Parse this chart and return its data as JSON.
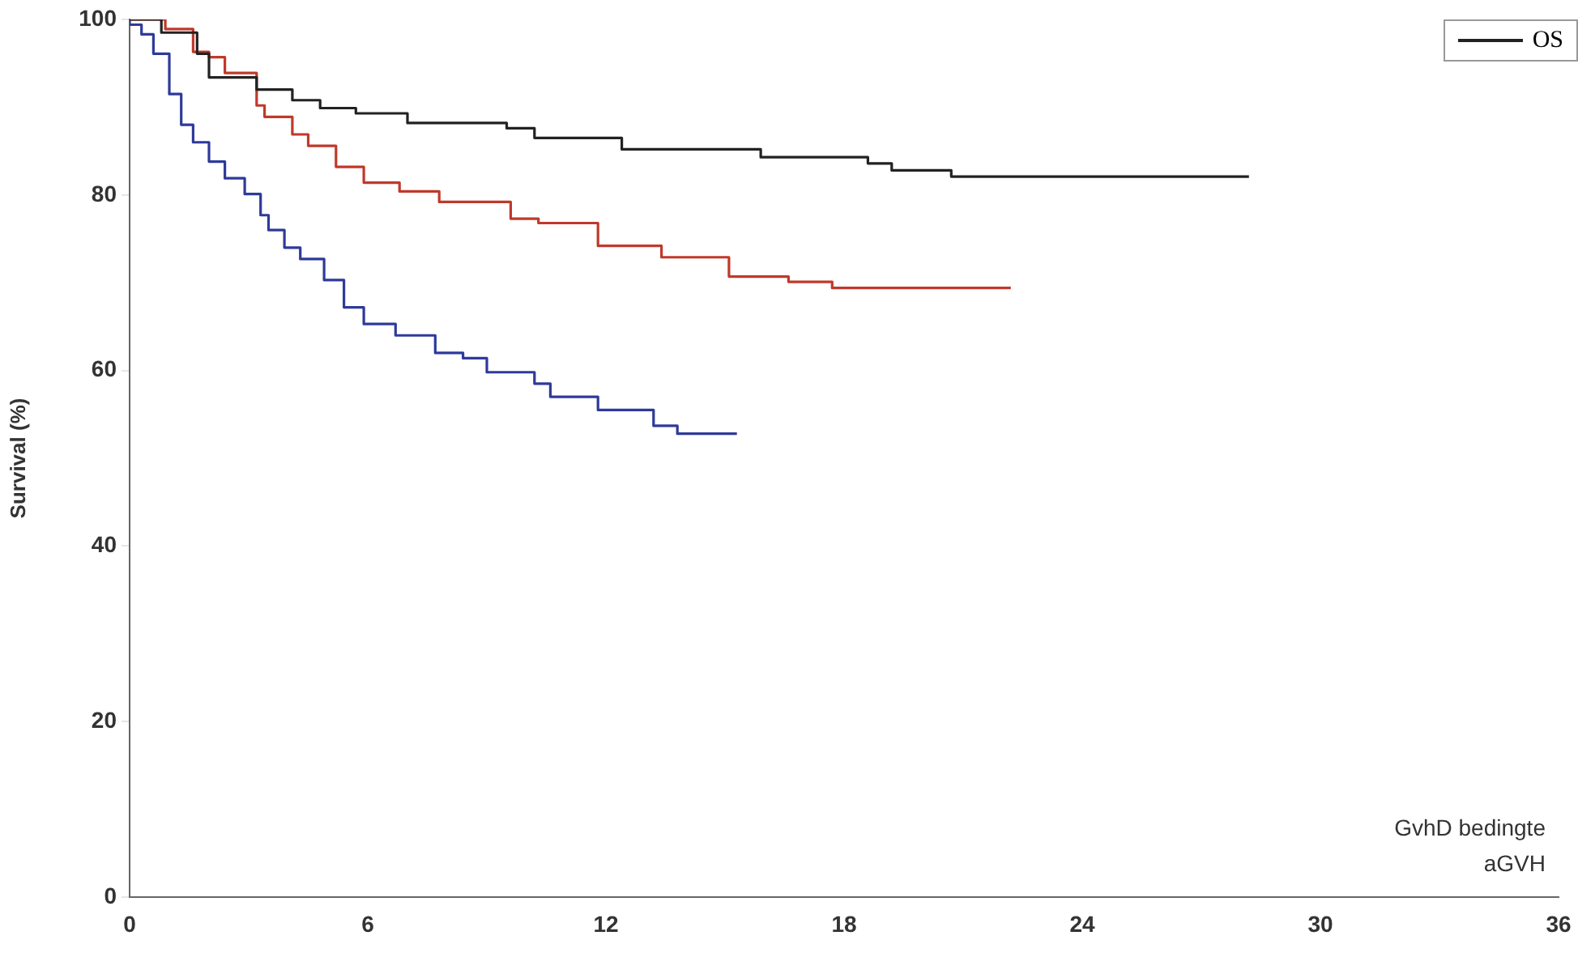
{
  "chart_data": {
    "type": "step",
    "ylabel": "Survival (%)",
    "xlim": [
      0,
      36
    ],
    "xticks": [
      0,
      6,
      12,
      18,
      24,
      30,
      36
    ],
    "ylim": [
      0,
      100
    ],
    "yticks": [
      0,
      20,
      40,
      60,
      80,
      100
    ],
    "legend": "top right",
    "grid": false,
    "annotations": [
      "aGVH",
      "GvhD bedingte"
    ],
    "series": [
      {
        "name": "OS",
        "color": "#222222",
        "x": [
          0,
          0.8,
          1.7,
          2.0,
          3.2,
          4.1,
          4.8,
          5.7,
          7.0,
          9.5,
          10.2,
          12.4,
          15.9,
          18.6,
          19.2,
          20.7,
          22.2,
          28.2
        ],
        "values": [
          100,
          100,
          98.5,
          96.1,
          93.4,
          92,
          90.8,
          89.9,
          89.3,
          88.2,
          87.6,
          86.5,
          85.2,
          84.3,
          83.6,
          82.8,
          82.1,
          82.1
        ]
      },
      {
        "color": "#c0392b",
        "x": [
          0,
          0.9,
          1.6,
          2.0,
          2.4,
          3.2,
          3.4,
          4.1,
          4.5,
          5.2,
          5.9,
          6.8,
          7.8,
          9.6,
          10.3,
          11.8,
          13.4,
          15.1,
          16.6,
          17.7,
          20.3,
          22.2
        ],
        "values": [
          100,
          100,
          98.9,
          96.3,
          95.7,
          93.9,
          90.2,
          88.9,
          86.9,
          85.6,
          83.2,
          81.4,
          80.4,
          79.2,
          77.3,
          76.8,
          74.2,
          72.9,
          70.7,
          70.1,
          69.4,
          69.4
        ]
      },
      {
        "color": "#2e3a9a",
        "x": [
          0,
          0.3,
          0.6,
          1.0,
          1.3,
          1.6,
          2.0,
          2.4,
          2.9,
          3.3,
          3.5,
          3.9,
          4.3,
          4.9,
          5.4,
          5.9,
          6.7,
          7.7,
          8.4,
          9.0,
          10.2,
          10.6,
          11.8,
          13.2,
          13.8,
          14.8,
          15.3
        ],
        "values": [
          100,
          99.4,
          98.3,
          96.1,
          91.5,
          88,
          86,
          83.8,
          81.9,
          80.1,
          77.7,
          76,
          74,
          72.7,
          70.3,
          67.2,
          65.3,
          64,
          62,
          61.4,
          59.8,
          58.5,
          57,
          55.5,
          53.7,
          52.8,
          52.8
        ]
      }
    ]
  }
}
